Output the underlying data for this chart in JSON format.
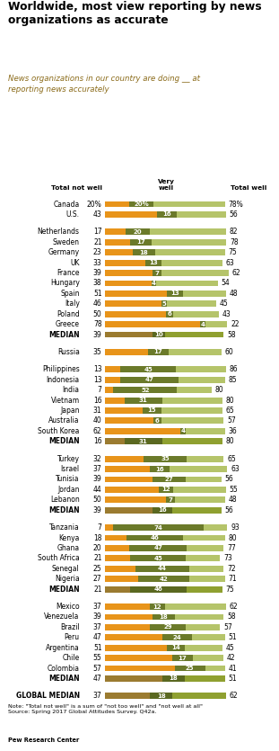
{
  "title": "Worldwide, most view reporting by news\norganizations as accurate",
  "subtitle": "News organizations in our country are doing __ at\nreporting news accurately",
  "groups": [
    {
      "rows": [
        {
          "country": "Canada",
          "not_well": 20,
          "very_well": 20,
          "total_well": 78,
          "is_median": false,
          "show_pct": true
        },
        {
          "country": "U.S.",
          "not_well": 43,
          "very_well": 16,
          "total_well": 56,
          "is_median": false,
          "show_pct": false
        }
      ]
    },
    {
      "rows": [
        {
          "country": "Netherlands",
          "not_well": 17,
          "very_well": 20,
          "total_well": 82,
          "is_median": false,
          "show_pct": false
        },
        {
          "country": "Sweden",
          "not_well": 21,
          "very_well": 17,
          "total_well": 78,
          "is_median": false,
          "show_pct": false
        },
        {
          "country": "Germany",
          "not_well": 23,
          "very_well": 18,
          "total_well": 75,
          "is_median": false,
          "show_pct": false
        },
        {
          "country": "UK",
          "not_well": 33,
          "very_well": 13,
          "total_well": 63,
          "is_median": false,
          "show_pct": false
        },
        {
          "country": "France",
          "not_well": 39,
          "very_well": 7,
          "total_well": 62,
          "is_median": false,
          "show_pct": false
        },
        {
          "country": "Hungary",
          "not_well": 38,
          "very_well": 4,
          "total_well": 54,
          "is_median": false,
          "show_pct": false
        },
        {
          "country": "Spain",
          "not_well": 51,
          "very_well": 13,
          "total_well": 48,
          "is_median": false,
          "show_pct": false
        },
        {
          "country": "Italy",
          "not_well": 46,
          "very_well": 5,
          "total_well": 45,
          "is_median": false,
          "show_pct": false
        },
        {
          "country": "Poland",
          "not_well": 50,
          "very_well": 6,
          "total_well": 43,
          "is_median": false,
          "show_pct": false
        },
        {
          "country": "Greece",
          "not_well": 78,
          "very_well": 4,
          "total_well": 22,
          "is_median": false,
          "show_pct": false
        },
        {
          "country": "MEDIAN",
          "not_well": 39,
          "very_well": 10,
          "total_well": 58,
          "is_median": true,
          "show_pct": false
        }
      ]
    },
    {
      "rows": [
        {
          "country": "Russia",
          "not_well": 35,
          "very_well": 17,
          "total_well": 60,
          "is_median": false,
          "show_pct": false
        }
      ]
    },
    {
      "rows": [
        {
          "country": "Philippines",
          "not_well": 13,
          "very_well": 45,
          "total_well": 86,
          "is_median": false,
          "show_pct": false
        },
        {
          "country": "Indonesia",
          "not_well": 13,
          "very_well": 47,
          "total_well": 85,
          "is_median": false,
          "show_pct": false
        },
        {
          "country": "India",
          "not_well": 7,
          "very_well": 52,
          "total_well": 80,
          "is_median": false,
          "show_pct": false
        },
        {
          "country": "Vietnam",
          "not_well": 16,
          "very_well": 31,
          "total_well": 80,
          "is_median": false,
          "show_pct": false
        },
        {
          "country": "Japan",
          "not_well": 31,
          "very_well": 15,
          "total_well": 65,
          "is_median": false,
          "show_pct": false
        },
        {
          "country": "Australia",
          "not_well": 40,
          "very_well": 6,
          "total_well": 57,
          "is_median": false,
          "show_pct": false
        },
        {
          "country": "South Korea",
          "not_well": 62,
          "very_well": 4,
          "total_well": 36,
          "is_median": false,
          "show_pct": false
        },
        {
          "country": "MEDIAN",
          "not_well": 16,
          "very_well": 31,
          "total_well": 80,
          "is_median": true,
          "show_pct": false
        }
      ]
    },
    {
      "rows": [
        {
          "country": "Turkey",
          "not_well": 32,
          "very_well": 35,
          "total_well": 65,
          "is_median": false,
          "show_pct": false
        },
        {
          "country": "Israel",
          "not_well": 37,
          "very_well": 16,
          "total_well": 63,
          "is_median": false,
          "show_pct": false
        },
        {
          "country": "Tunisia",
          "not_well": 39,
          "very_well": 27,
          "total_well": 56,
          "is_median": false,
          "show_pct": false
        },
        {
          "country": "Jordan",
          "not_well": 44,
          "very_well": 12,
          "total_well": 55,
          "is_median": false,
          "show_pct": false
        },
        {
          "country": "Lebanon",
          "not_well": 50,
          "very_well": 7,
          "total_well": 48,
          "is_median": false,
          "show_pct": false
        },
        {
          "country": "MEDIAN",
          "not_well": 39,
          "very_well": 16,
          "total_well": 56,
          "is_median": true,
          "show_pct": false
        }
      ]
    },
    {
      "rows": [
        {
          "country": "Tanzania",
          "not_well": 7,
          "very_well": 74,
          "total_well": 93,
          "is_median": false,
          "show_pct": false
        },
        {
          "country": "Kenya",
          "not_well": 18,
          "very_well": 46,
          "total_well": 80,
          "is_median": false,
          "show_pct": false
        },
        {
          "country": "Ghana",
          "not_well": 20,
          "very_well": 47,
          "total_well": 77,
          "is_median": false,
          "show_pct": false
        },
        {
          "country": "South Africa",
          "not_well": 21,
          "very_well": 45,
          "total_well": 73,
          "is_median": false,
          "show_pct": false
        },
        {
          "country": "Senegal",
          "not_well": 25,
          "very_well": 44,
          "total_well": 72,
          "is_median": false,
          "show_pct": false
        },
        {
          "country": "Nigeria",
          "not_well": 27,
          "very_well": 42,
          "total_well": 71,
          "is_median": false,
          "show_pct": false
        },
        {
          "country": "MEDIAN",
          "not_well": 21,
          "very_well": 46,
          "total_well": 75,
          "is_median": true,
          "show_pct": false
        }
      ]
    },
    {
      "rows": [
        {
          "country": "Mexico",
          "not_well": 37,
          "very_well": 12,
          "total_well": 62,
          "is_median": false,
          "show_pct": false
        },
        {
          "country": "Venezuela",
          "not_well": 39,
          "very_well": 18,
          "total_well": 58,
          "is_median": false,
          "show_pct": false
        },
        {
          "country": "Brazil",
          "not_well": 37,
          "very_well": 29,
          "total_well": 57,
          "is_median": false,
          "show_pct": false
        },
        {
          "country": "Peru",
          "not_well": 47,
          "very_well": 24,
          "total_well": 51,
          "is_median": false,
          "show_pct": false
        },
        {
          "country": "Argentina",
          "not_well": 51,
          "very_well": 14,
          "total_well": 45,
          "is_median": false,
          "show_pct": false
        },
        {
          "country": "Chile",
          "not_well": 55,
          "very_well": 17,
          "total_well": 42,
          "is_median": false,
          "show_pct": false
        },
        {
          "country": "Colombia",
          "not_well": 57,
          "very_well": 25,
          "total_well": 41,
          "is_median": false,
          "show_pct": false
        },
        {
          "country": "MEDIAN",
          "not_well": 47,
          "very_well": 18,
          "total_well": 51,
          "is_median": true,
          "show_pct": false
        }
      ]
    },
    {
      "rows": [
        {
          "country": "GLOBAL MEDIAN",
          "not_well": 37,
          "very_well": 18,
          "total_well": 62,
          "is_median": true,
          "show_pct": false
        }
      ]
    }
  ],
  "colors": {
    "orange": "#E8941A",
    "dark_green": "#6B7A2A",
    "light_green": "#B5C46A",
    "med_orange": "#9B7B30",
    "med_dark": "#5A6820",
    "med_light": "#8FA030",
    "subtitle": "#8B6B1A"
  },
  "note": "Note: \"Total not well\" is a sum of \"not too well\" and \"not well at all\"\nSource: Spring 2017 Global Attitudes Survey. Q42a.",
  "source": "Pew Research Center"
}
